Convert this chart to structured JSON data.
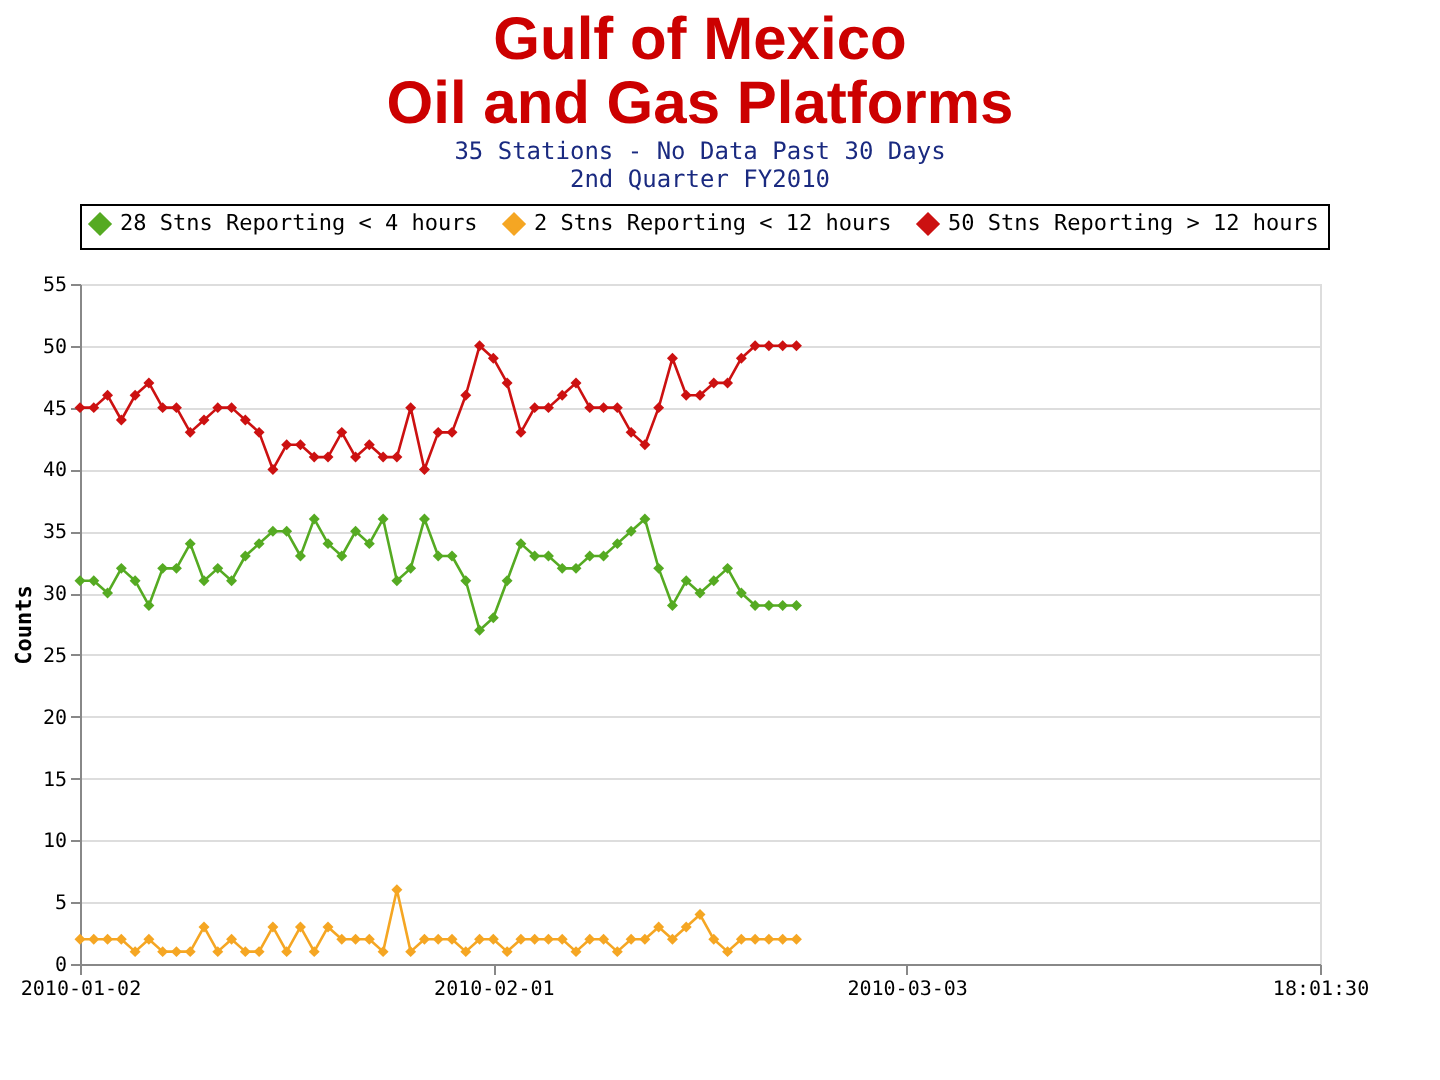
{
  "chart_data": {
    "type": "line",
    "title": [
      "Gulf of Mexico",
      "Oil and Gas Platforms"
    ],
    "subtitle": [
      "35 Stations - No Data Past 30 Days",
      "2nd Quarter FY2010"
    ],
    "ylabel": "Counts",
    "x": [
      "2010-01-02",
      "2010-01-03",
      "2010-01-04",
      "2010-01-05",
      "2010-01-06",
      "2010-01-07",
      "2010-01-08",
      "2010-01-09",
      "2010-01-10",
      "2010-01-11",
      "2010-01-12",
      "2010-01-13",
      "2010-01-14",
      "2010-01-15",
      "2010-01-16",
      "2010-01-17",
      "2010-01-18",
      "2010-01-19",
      "2010-01-20",
      "2010-01-21",
      "2010-01-22",
      "2010-01-23",
      "2010-01-24",
      "2010-01-25",
      "2010-01-26",
      "2010-01-27",
      "2010-01-28",
      "2010-01-29",
      "2010-01-30",
      "2010-01-31",
      "2010-02-01",
      "2010-02-02",
      "2010-02-03",
      "2010-02-04",
      "2010-02-05",
      "2010-02-06",
      "2010-02-07",
      "2010-02-08",
      "2010-02-09",
      "2010-02-10",
      "2010-02-11",
      "2010-02-12",
      "2010-02-13",
      "2010-02-14",
      "2010-02-15",
      "2010-02-16",
      "2010-02-17",
      "2010-02-18",
      "2010-02-19",
      "2010-02-20",
      "2010-02-21",
      "2010-02-22",
      "2010-02-23"
    ],
    "series": [
      {
        "name": "28 Stns Reporting < 4 hours",
        "color": "#55aa22",
        "values": [
          31,
          31,
          30,
          32,
          31,
          29,
          32,
          32,
          34,
          31,
          32,
          31,
          33,
          34,
          35,
          35,
          33,
          36,
          34,
          33,
          35,
          34,
          36,
          31,
          32,
          36,
          33,
          33,
          31,
          27,
          28,
          31,
          34,
          33,
          33,
          32,
          32,
          33,
          33,
          34,
          35,
          36,
          32,
          29,
          31,
          30,
          31,
          32,
          30,
          29,
          29,
          29,
          29
        ]
      },
      {
        "name": "2 Stns Reporting < 12 hours",
        "color": "#f5a623",
        "values": [
          2,
          2,
          2,
          2,
          1,
          2,
          1,
          1,
          1,
          3,
          1,
          2,
          1,
          1,
          3,
          1,
          3,
          1,
          3,
          2,
          2,
          2,
          1,
          6,
          1,
          2,
          2,
          2,
          1,
          2,
          2,
          1,
          2,
          2,
          2,
          2,
          1,
          2,
          2,
          1,
          2,
          2,
          3,
          2,
          3,
          4,
          2,
          1,
          2,
          2,
          2,
          2,
          2
        ]
      },
      {
        "name": "50 Stns Reporting > 12 hours",
        "color": "#cc1111",
        "values": [
          45,
          45,
          46,
          44,
          46,
          47,
          45,
          45,
          43,
          44,
          45,
          45,
          44,
          43,
          40,
          42,
          42,
          41,
          41,
          43,
          41,
          42,
          41,
          41,
          45,
          40,
          43,
          43,
          46,
          50,
          49,
          47,
          43,
          45,
          45,
          46,
          47,
          45,
          45,
          45,
          43,
          42,
          45,
          49,
          46,
          46,
          47,
          47,
          49,
          50,
          50,
          50,
          50
        ]
      }
    ],
    "xlim": [
      "2010-01-02",
      "2010-04-02"
    ],
    "xticks": [
      "2010-01-02",
      "2010-02-01",
      "2010-03-03",
      {
        "value": "2010-04-02",
        "label": "18:01:30"
      }
    ],
    "ylim": [
      0,
      55
    ],
    "yticks": [
      0,
      5,
      10,
      15,
      20,
      25,
      30,
      35,
      40,
      45,
      50,
      55
    ],
    "grid": "y",
    "legend": "top",
    "marker": "diamond",
    "line_style": "solid"
  }
}
